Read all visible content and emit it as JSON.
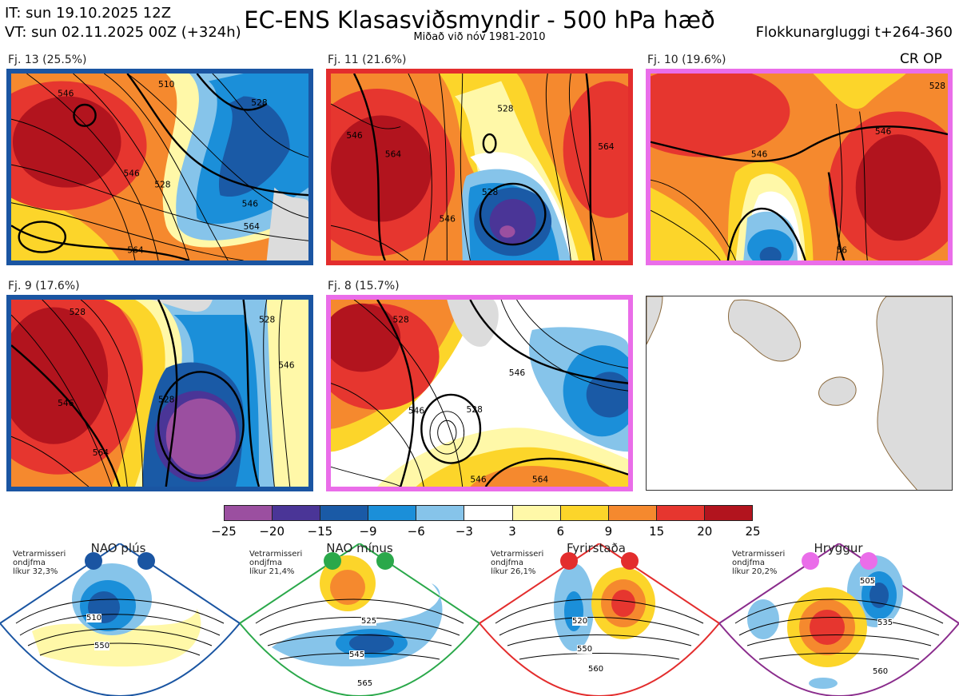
{
  "header": {
    "it_line": "IT: sun 19.10.2025 12Z",
    "vt_line": "VT: sun 02.11.2025 00Z  (+324h)",
    "title": "EC-ENS Klasasviðsmyndir - 500 hPa hæð",
    "subtitle": "Miðað við nóv 1981-2010",
    "window": "Flokkunargluggi t+264-360",
    "cr_op": "CR OP"
  },
  "clusters": [
    {
      "label": "Fj. 13 (25.5%)",
      "frame_color": "#1a55a2",
      "contours": [
        "546",
        "528",
        "564",
        "564",
        "546",
        "510",
        "528",
        "546"
      ]
    },
    {
      "label": "Fj. 11 (21.6%)",
      "frame_color": "#e32d2d",
      "contours": [
        "546",
        "564",
        "528",
        "528",
        "546",
        "564"
      ]
    },
    {
      "label": "Fj. 10 (19.6%)",
      "frame_color": "#ea6de9",
      "contours": [
        "546",
        "528",
        "546",
        "56"
      ]
    },
    {
      "label": "Fj. 9 (17.6%)",
      "frame_color": "#1a55a2",
      "contours": [
        "528",
        "546",
        "564",
        "528",
        "546",
        "528"
      ]
    },
    {
      "label": "Fj. 8 (15.7%)",
      "frame_color": "#ea6de9",
      "contours": [
        "528",
        "546",
        "546",
        "528",
        "546",
        "564"
      ]
    }
  ],
  "chart_data": {
    "type": "heatmap",
    "title": "EC-ENS Klasasviðsmyndir - 500 hPa hæð",
    "subtitle": "Miðað við nóv 1981-2010",
    "colorbar": {
      "ticks": [
        "−25",
        "−20",
        "−15",
        "−9",
        "−6",
        "−3",
        "3",
        "6",
        "9",
        "15",
        "20",
        "25"
      ],
      "colors": [
        "#9b4fa0",
        "#4a3597",
        "#1a5aa6",
        "#1b8fd9",
        "#86c4ea",
        "#ffffff",
        "#fff8a8",
        "#fcd52a",
        "#f5892e",
        "#e6362f",
        "#b2141e"
      ]
    },
    "clusters": [
      {
        "name": "Fj. 13",
        "percent": 25.5
      },
      {
        "name": "Fj. 11",
        "percent": 21.6
      },
      {
        "name": "Fj. 10",
        "percent": 19.6
      },
      {
        "name": "Fj. 9",
        "percent": 17.6
      },
      {
        "name": "Fj. 8",
        "percent": 15.7
      }
    ]
  },
  "regimes": [
    {
      "name": "NAO plús",
      "note": "Vetrarmisseri\nondjfma\nlíkur 32,3%",
      "frame_color": "#1a55a2",
      "dot_color": "#1a55a2",
      "labels": [
        "510",
        "550"
      ]
    },
    {
      "name": "NAO mínus",
      "note": "Vetrarmisseri\nondjfma\nlíkur 21,4%",
      "frame_color": "#2aa84a",
      "dot_color": "#2aa84a",
      "labels": [
        "525",
        "545",
        "565"
      ]
    },
    {
      "name": "Fyrirstaða",
      "note": "Vetrarmisseri\nondjfma\nlíkur 26,1%",
      "frame_color": "#e32d2d",
      "dot_color": "#e32d2d",
      "labels": [
        "520",
        "550",
        "560"
      ]
    },
    {
      "name": "Hryggur",
      "note": "Vetrarmisseri\nondjfma\nlíkur 20,2%",
      "frame_color": "#8a2c8c",
      "dot_color": "#ea6de9",
      "labels": [
        "505",
        "535",
        "560"
      ]
    }
  ]
}
